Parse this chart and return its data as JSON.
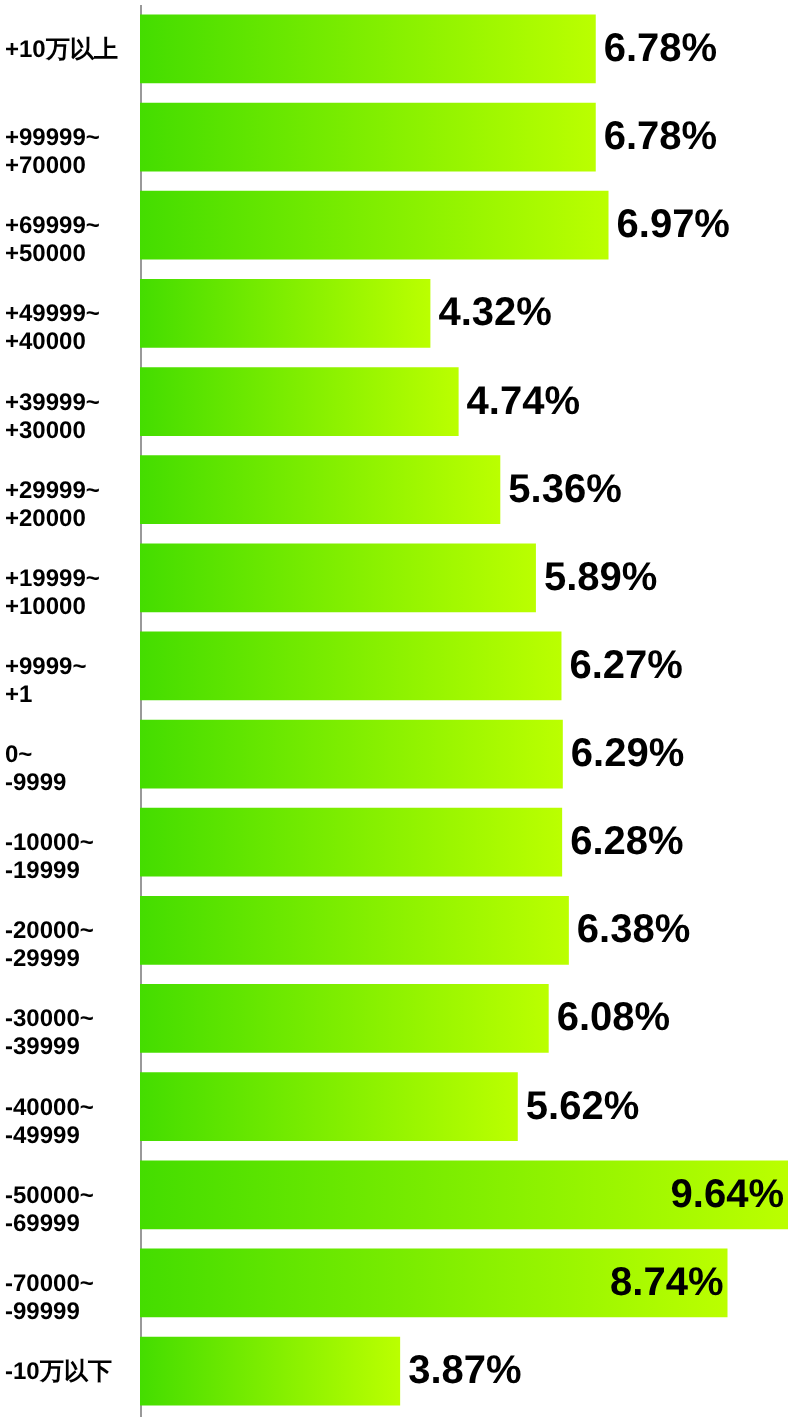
{
  "chart_data": {
    "type": "bar",
    "orientation": "horizontal",
    "categories": [
      "+10万以上",
      "+99999~\n+70000",
      "+69999~\n+50000",
      "+49999~\n+40000",
      "+39999~\n+30000",
      "+29999~\n+20000",
      "+19999~\n+10000",
      "+9999~\n+1",
      "0~\n-9999",
      "-10000~\n-19999",
      "-20000~\n-29999",
      "-30000~\n-39999",
      "-40000~\n-49999",
      "-50000~\n-69999",
      "-70000~\n-99999",
      "-10万以下"
    ],
    "values": [
      6.78,
      6.78,
      6.97,
      4.32,
      4.74,
      5.36,
      5.89,
      6.27,
      6.29,
      6.28,
      6.38,
      6.08,
      5.62,
      9.64,
      8.74,
      3.87
    ],
    "value_labels": [
      "6.78%",
      "6.78%",
      "6.97%",
      "4.32%",
      "4.74%",
      "5.36%",
      "5.89%",
      "6.27%",
      "6.29%",
      "6.28%",
      "6.38%",
      "6.08%",
      "5.62%",
      "9.64%",
      "8.74%",
      "3.87%"
    ],
    "color": "#44dd00",
    "grid": false
  }
}
